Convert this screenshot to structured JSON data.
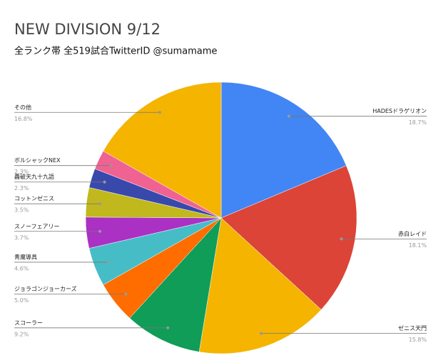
{
  "chart_data": {
    "type": "pie",
    "title": "NEW DIVISION 9/12",
    "subtitle": "全ランク帯 全519試合TwitterID @sumamame",
    "categories": [
      "HADESドラゲリオン",
      "赤白レイド",
      "ゼニス天門",
      "スコーラー",
      "ジョラゴンジョーカーズ",
      "青魔導具",
      "スノーフェアリー",
      "コットンゼニス",
      "轟破天九十九語",
      "ボルシャックNEX",
      "その他"
    ],
    "values": [
      18.7,
      18.1,
      15.8,
      9.2,
      5.0,
      4.6,
      3.7,
      3.5,
      2.3,
      2.3,
      16.8
    ],
    "value_labels": [
      "18.7%",
      "18.1%",
      "15.8%",
      "9.2%",
      "5.0%",
      "4.6%",
      "3.7%",
      "3.5%",
      "2.3%",
      "2.3%",
      "16.8%"
    ],
    "colors": [
      "#4285f4",
      "#db4437",
      "#f4b400",
      "#0f9d58",
      "#ff6d00",
      "#46bdc6",
      "#ab30c4",
      "#c0b81c",
      "#3949ab",
      "#f06292",
      "#f4b400"
    ]
  }
}
